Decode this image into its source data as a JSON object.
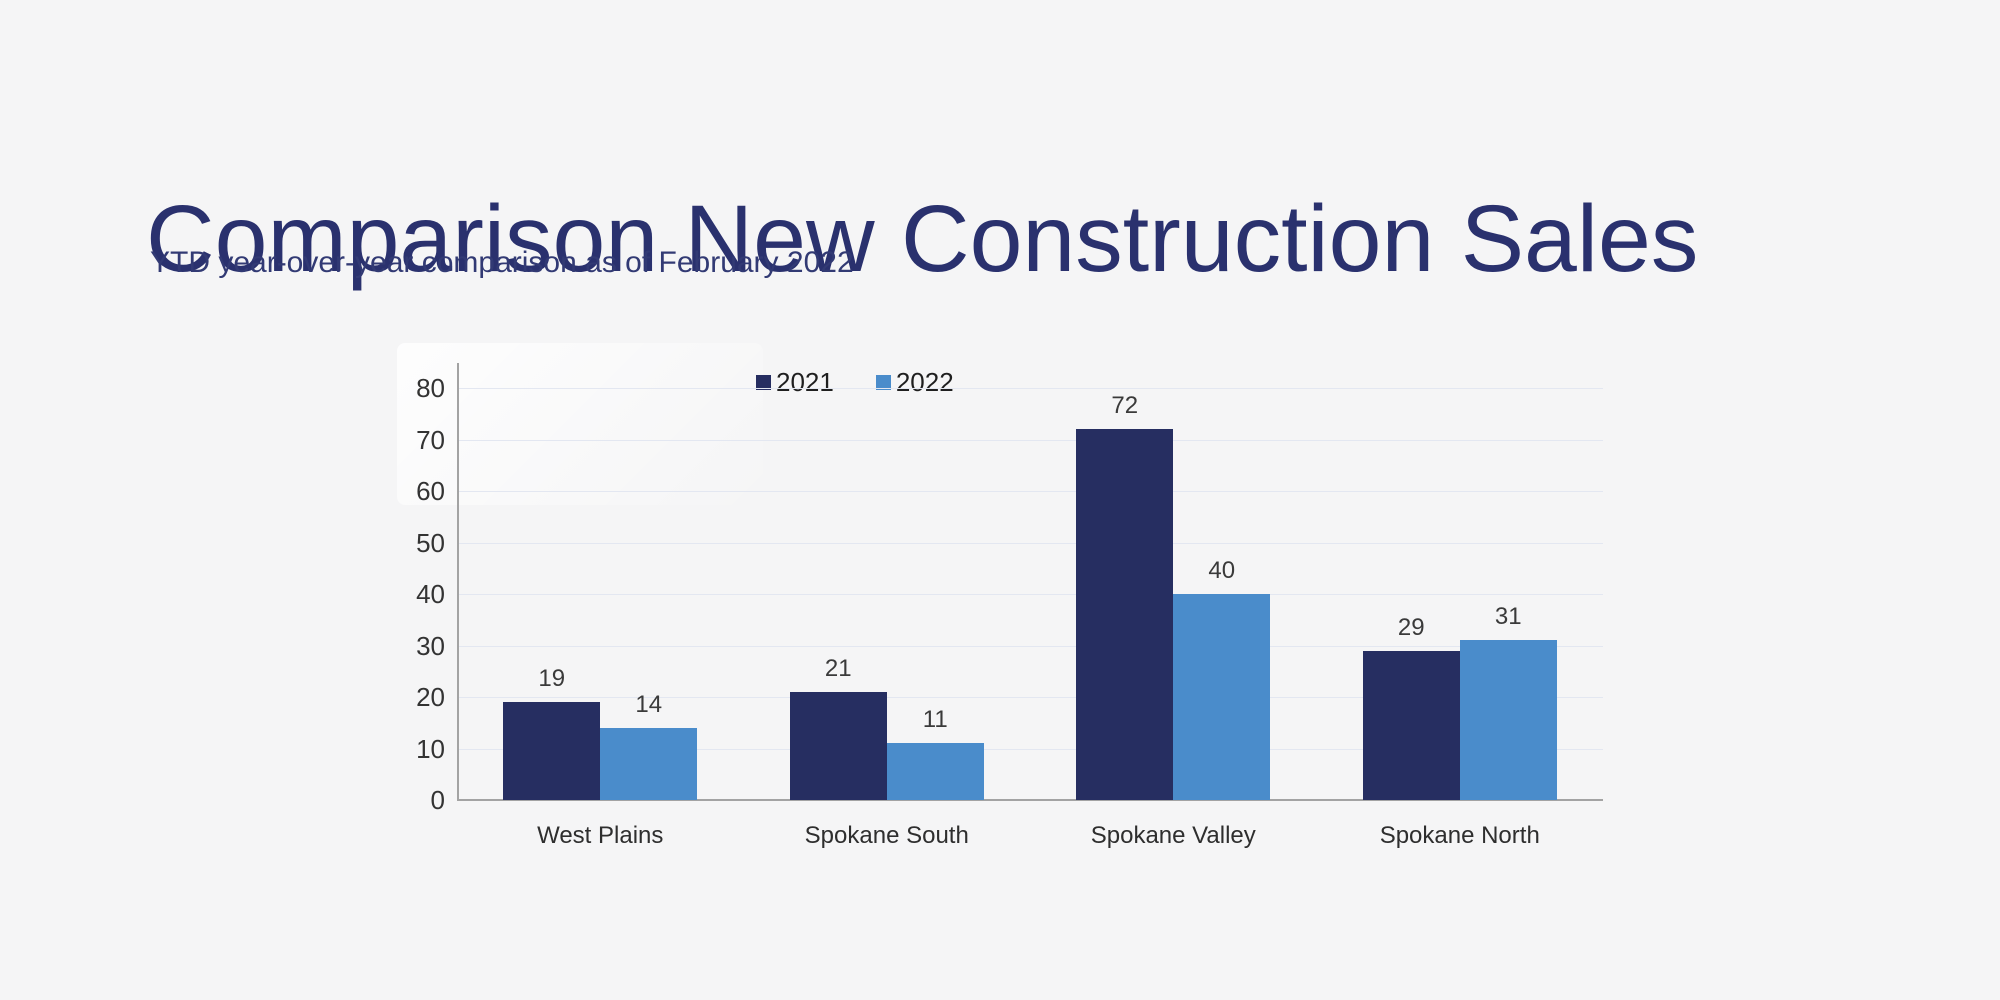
{
  "page": {
    "background_color": "#F5F5F6"
  },
  "header": {
    "title": "Comparison New Construction Sales",
    "subtitle": "YTD year-over-year comparison as of February 2022",
    "title_color": "#2A316E",
    "subtitle_color": "#323A74"
  },
  "chart_data": {
    "type": "bar",
    "categories": [
      "West Plains",
      "Spokane South",
      "Spokane Valley",
      "Spokane North"
    ],
    "series": [
      {
        "name": "2021",
        "color": "#262E61",
        "values": [
          19,
          21,
          72,
          29
        ]
      },
      {
        "name": "2022",
        "color": "#4A8CCB",
        "values": [
          14,
          11,
          40,
          31
        ]
      }
    ],
    "title": "",
    "xlabel": "",
    "ylabel": "",
    "ylim": [
      0,
      80
    ],
    "yticks": [
      0,
      10,
      20,
      30,
      40,
      50,
      60,
      70,
      80
    ],
    "grid": true,
    "legend_position": "top-center",
    "value_labels": true,
    "colors": {
      "gridline": "#E3E7F1",
      "axis": "#A3A3A3",
      "tick_text": "#333333",
      "value_text": "#3A3A3A",
      "category_text": "#2E2E2E",
      "legend_text": "#1F1F1F"
    }
  }
}
